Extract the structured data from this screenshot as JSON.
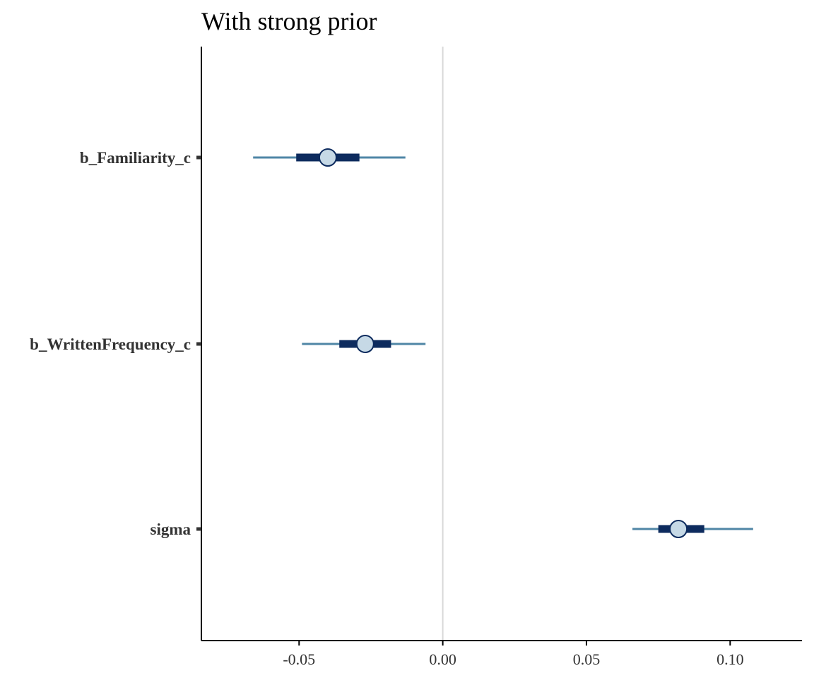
{
  "chart_data": {
    "type": "interval",
    "title": "With strong prior",
    "xlabel": "",
    "ylabel": "",
    "xlim": [
      -0.084,
      0.125
    ],
    "x_ticks": [
      -0.05,
      0.0,
      0.05,
      0.1
    ],
    "x_tick_labels": [
      "-0.05",
      "0.00",
      "0.05",
      "0.10"
    ],
    "reference_line_x": 0,
    "grid": false,
    "parameters": [
      {
        "name": "b_Familiarity_c",
        "median": -0.04,
        "inner": [
          -0.051,
          -0.029
        ],
        "outer": [
          -0.066,
          -0.013
        ]
      },
      {
        "name": "b_WrittenFrequency_c",
        "median": -0.027,
        "inner": [
          -0.036,
          -0.018
        ],
        "outer": [
          -0.049,
          -0.006
        ]
      },
      {
        "name": "sigma",
        "median": 0.082,
        "inner": [
          0.075,
          0.091
        ],
        "outer": [
          0.066,
          0.108
        ]
      }
    ],
    "colors": {
      "outer_line": "#4f86a6",
      "inner_bar": "#0d2b5e",
      "point_fill": "#c6d9e6",
      "point_stroke": "#0d2b5e",
      "ref_line": "#d9d9d9",
      "axis": "#000000"
    }
  }
}
